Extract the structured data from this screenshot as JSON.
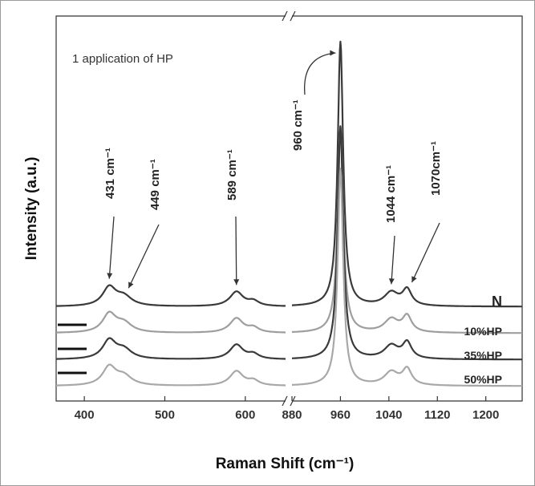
{
  "chart_data": {
    "type": "line",
    "title": "",
    "annotation": "1 application of HP",
    "xlabel": "Raman Shift (cm⁻¹)",
    "ylabel": "Intensity (a.u.)",
    "x_axis_broken": true,
    "x_segments": [
      {
        "range": [
          365,
          650
        ],
        "ticks": [
          400,
          500,
          600
        ]
      },
      {
        "range": [
          880,
          1260
        ],
        "ticks": [
          880,
          960,
          1040,
          1120,
          1200
        ]
      }
    ],
    "y_ticks_shown": false,
    "peaks": [
      {
        "x": 431,
        "label": "431 cm⁻¹"
      },
      {
        "x": 449,
        "label": "449 cm⁻¹"
      },
      {
        "x": 589,
        "label": "589 cm⁻¹"
      },
      {
        "x": 960,
        "label": "960 cm⁻¹"
      },
      {
        "x": 1044,
        "label": "1044 cm⁻¹"
      },
      {
        "x": 1070,
        "label": "1070cm⁻¹"
      }
    ],
    "series": [
      {
        "name": "N",
        "color": "#3a3a3a",
        "offset": 0.3,
        "p960": 1.0
      },
      {
        "name": "10%HP",
        "color": "#9e9e9e",
        "offset": 0.2,
        "p960": 0.78
      },
      {
        "name": "35%HP",
        "color": "#3a3a3a",
        "offset": 0.1,
        "p960": 0.88
      },
      {
        "name": "50%HP",
        "color": "#a8a8a8",
        "offset": 0.0,
        "p960": 0.82
      }
    ]
  }
}
